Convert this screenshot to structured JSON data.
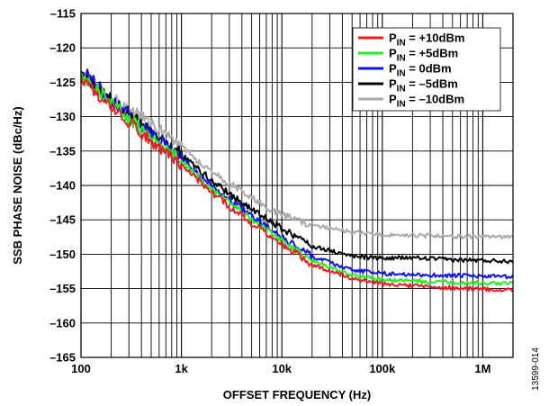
{
  "chart_data": {
    "type": "line",
    "xlabel": "OFFSET FREQUENCY (Hz)",
    "ylabel": "SSB PHASE NOISE (dBc/Hz)",
    "x_scale": "log",
    "xlim": [
      100,
      2000000
    ],
    "ylim": [
      -165,
      -115
    ],
    "x_ticks": [
      {
        "value": 100,
        "label": "100"
      },
      {
        "value": 1000,
        "label": "1k"
      },
      {
        "value": 10000,
        "label": "10k"
      },
      {
        "value": 100000,
        "label": "100k"
      },
      {
        "value": 1000000,
        "label": "1M"
      }
    ],
    "y_ticks": [
      {
        "value": -115,
        "label": "–115"
      },
      {
        "value": -120,
        "label": "–120"
      },
      {
        "value": -125,
        "label": "–125"
      },
      {
        "value": -130,
        "label": "–130"
      },
      {
        "value": -135,
        "label": "–135"
      },
      {
        "value": -140,
        "label": "–140"
      },
      {
        "value": -145,
        "label": "–145"
      },
      {
        "value": -150,
        "label": "–150"
      },
      {
        "value": -155,
        "label": "–155"
      },
      {
        "value": -160,
        "label": "–160"
      },
      {
        "value": -165,
        "label": "–165"
      }
    ],
    "grid": true,
    "legend_position": "top-right",
    "x": [
      100,
      200,
      500,
      1000,
      2000,
      5000,
      10000,
      20000,
      50000,
      100000,
      200000,
      500000,
      1000000,
      2000000
    ],
    "series": [
      {
        "name": "PIN = +10dBm",
        "legend_main": "P",
        "legend_sub": "IN",
        "legend_rest": " = +10dBm",
        "color": "#ee1c25",
        "values": [
          -124.5,
          -128.5,
          -133.5,
          -137.0,
          -141.0,
          -145.5,
          -148.5,
          -151.5,
          -153.5,
          -154.3,
          -154.6,
          -154.9,
          -155.1,
          -155.2
        ]
      },
      {
        "name": "PIN = +5dBm",
        "legend_main": "P",
        "legend_sub": "IN",
        "legend_rest": " = +5dBm",
        "color": "#22ee22",
        "values": [
          -123.5,
          -128.0,
          -133.0,
          -136.5,
          -140.5,
          -145.0,
          -148.0,
          -151.0,
          -153.0,
          -153.7,
          -153.9,
          -154.1,
          -154.2,
          -154.3
        ]
      },
      {
        "name": "PIN = 0dBm",
        "legend_main": "P",
        "legend_sub": "IN",
        "legend_rest": " = 0dBm",
        "color": "#1010ee",
        "values": [
          -123.0,
          -127.5,
          -132.5,
          -136.0,
          -140.0,
          -144.5,
          -147.5,
          -150.3,
          -152.3,
          -152.8,
          -153.0,
          -153.1,
          -153.2,
          -153.3
        ]
      },
      {
        "name": "PIN = –5dBm",
        "legend_main": "P",
        "legend_sub": "IN",
        "legend_rest": " = –5dBm",
        "color": "#000000",
        "values": [
          -124.0,
          -127.5,
          -132.0,
          -135.5,
          -139.3,
          -143.5,
          -146.3,
          -148.8,
          -150.3,
          -150.6,
          -150.5,
          -150.8,
          -150.9,
          -151.0
        ]
      },
      {
        "name": "PIN = –10dBm",
        "legend_main": "P",
        "legend_sub": "IN",
        "legend_rest": " = –10dBm",
        "color": "#aaaaaa",
        "values": [
          -124.5,
          -127.3,
          -131.0,
          -134.5,
          -138.0,
          -141.8,
          -144.3,
          -145.8,
          -146.8,
          -147.2,
          -147.3,
          -147.4,
          -147.5,
          -147.5
        ]
      }
    ]
  },
  "figure_id": "13599-014"
}
